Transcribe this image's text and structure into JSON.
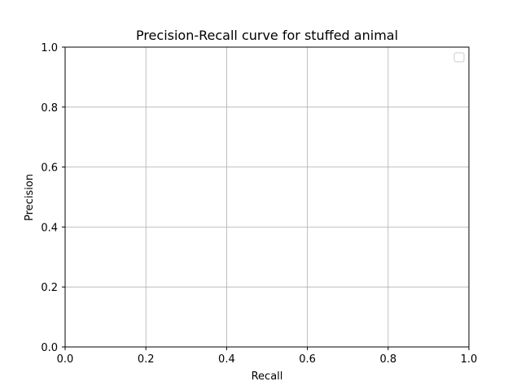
{
  "chart_data": {
    "type": "line",
    "title": "Precision-Recall curve for stuffed animal",
    "xlabel": "Recall",
    "ylabel": "Precision",
    "xlim": [
      0.0,
      1.0
    ],
    "ylim": [
      0.0,
      1.0
    ],
    "x_ticks": [
      "0.0",
      "0.2",
      "0.4",
      "0.6",
      "0.8",
      "1.0"
    ],
    "y_ticks": [
      "0.0",
      "0.2",
      "0.4",
      "0.6",
      "0.8",
      "1.0"
    ],
    "grid": true,
    "legend_placement": "upper-right",
    "legend_entries": [],
    "series": []
  },
  "colors": {
    "grid": "#b0b0b0",
    "axes": "#000000",
    "legend_border": "#cccccc"
  }
}
